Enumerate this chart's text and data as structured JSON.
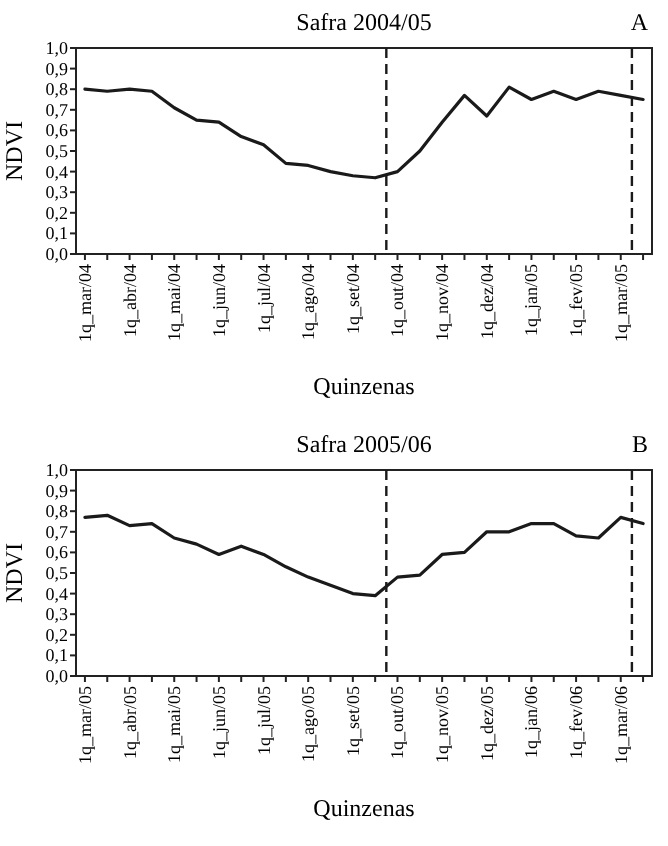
{
  "chart_data": [
    {
      "type": "line",
      "title": "Safra 2004/05",
      "xlabel": "Quinzenas",
      "ylabel": "NDVI",
      "annotations": [
        "A"
      ],
      "categories": [
        "1q_mar/04",
        null,
        "1q_abr/04",
        null,
        "1q_mai/04",
        null,
        "1q_jun/04",
        null,
        "1q_jul/04",
        null,
        "1q_ago/04",
        null,
        "1q_set/04",
        null,
        "1q_out/04",
        null,
        "1q_nov/04",
        null,
        "1q_dez/04",
        null,
        "1q_jan/05",
        null,
        "1q_fev/05",
        null,
        "1q_mar/05",
        null
      ],
      "series": [
        {
          "color": "#1a1a1a",
          "values": [
            0.8,
            0.79,
            0.8,
            0.79,
            0.71,
            0.65,
            0.64,
            0.57,
            0.53,
            0.44,
            0.43,
            0.4,
            0.38,
            0.37,
            0.4,
            0.5,
            0.64,
            0.77,
            0.67,
            0.81,
            0.75,
            0.79,
            0.75,
            0.79,
            0.77,
            0.75
          ]
        }
      ],
      "ylim": [
        0,
        1
      ],
      "yticks": [
        {
          "value": 0,
          "label": "0,0"
        },
        {
          "value": 0.1,
          "label": "0,1"
        },
        {
          "value": 0.2,
          "label": "0,2"
        },
        {
          "value": 0.3,
          "label": "0,3"
        },
        {
          "value": 0.4,
          "label": "0,4"
        },
        {
          "value": 0.5,
          "label": "0,5"
        },
        {
          "value": 0.6,
          "label": "0,6"
        },
        {
          "value": 0.7,
          "label": "0,7"
        },
        {
          "value": 0.8,
          "label": "0,8"
        },
        {
          "value": 0.9,
          "label": "0,9"
        },
        {
          "value": 1,
          "label": "1,0"
        }
      ],
      "grid": false,
      "marker": "none",
      "line_style": "solid"
    },
    {
      "type": "line",
      "title": "Safra 2005/06",
      "xlabel": "Quinzenas",
      "ylabel": "NDVI",
      "annotations": [
        "B"
      ],
      "categories": [
        "1q_mar/05",
        null,
        "1q_abr/05",
        null,
        "1q_mai/05",
        null,
        "1q_jun/05",
        null,
        "1q_jul/05",
        null,
        "1q_ago/05",
        null,
        "1q_set/05",
        null,
        "1q_out/05",
        null,
        "1q_nov/05",
        null,
        "1q_dez/05",
        null,
        "1q_jan/06",
        null,
        "1q_fev/06",
        null,
        "1q_mar/06",
        null
      ],
      "series": [
        {
          "color": "#1a1a1a",
          "values": [
            0.77,
            0.78,
            0.73,
            0.74,
            0.67,
            0.64,
            0.59,
            0.63,
            0.59,
            0.53,
            0.48,
            0.44,
            0.4,
            0.39,
            0.48,
            0.49,
            0.59,
            0.6,
            0.7,
            0.7,
            0.74,
            0.74,
            0.68,
            0.67,
            0.77,
            0.74
          ]
        }
      ],
      "ylim": [
        0,
        1
      ],
      "yticks": [
        {
          "value": 0,
          "label": "0,0"
        },
        {
          "value": 0.1,
          "label": "0,1"
        },
        {
          "value": 0.2,
          "label": "0,2"
        },
        {
          "value": 0.3,
          "label": "0,3"
        },
        {
          "value": 0.4,
          "label": "0,4"
        },
        {
          "value": 0.5,
          "label": "0,5"
        },
        {
          "value": 0.6,
          "label": "0,6"
        },
        {
          "value": 0.7,
          "label": "0,7"
        },
        {
          "value": 0.8,
          "label": "0,8"
        },
        {
          "value": 0.9,
          "label": "0,9"
        },
        {
          "value": 1,
          "label": "1,0"
        }
      ],
      "grid": false,
      "marker": "none",
      "line_style": "solid"
    }
  ]
}
